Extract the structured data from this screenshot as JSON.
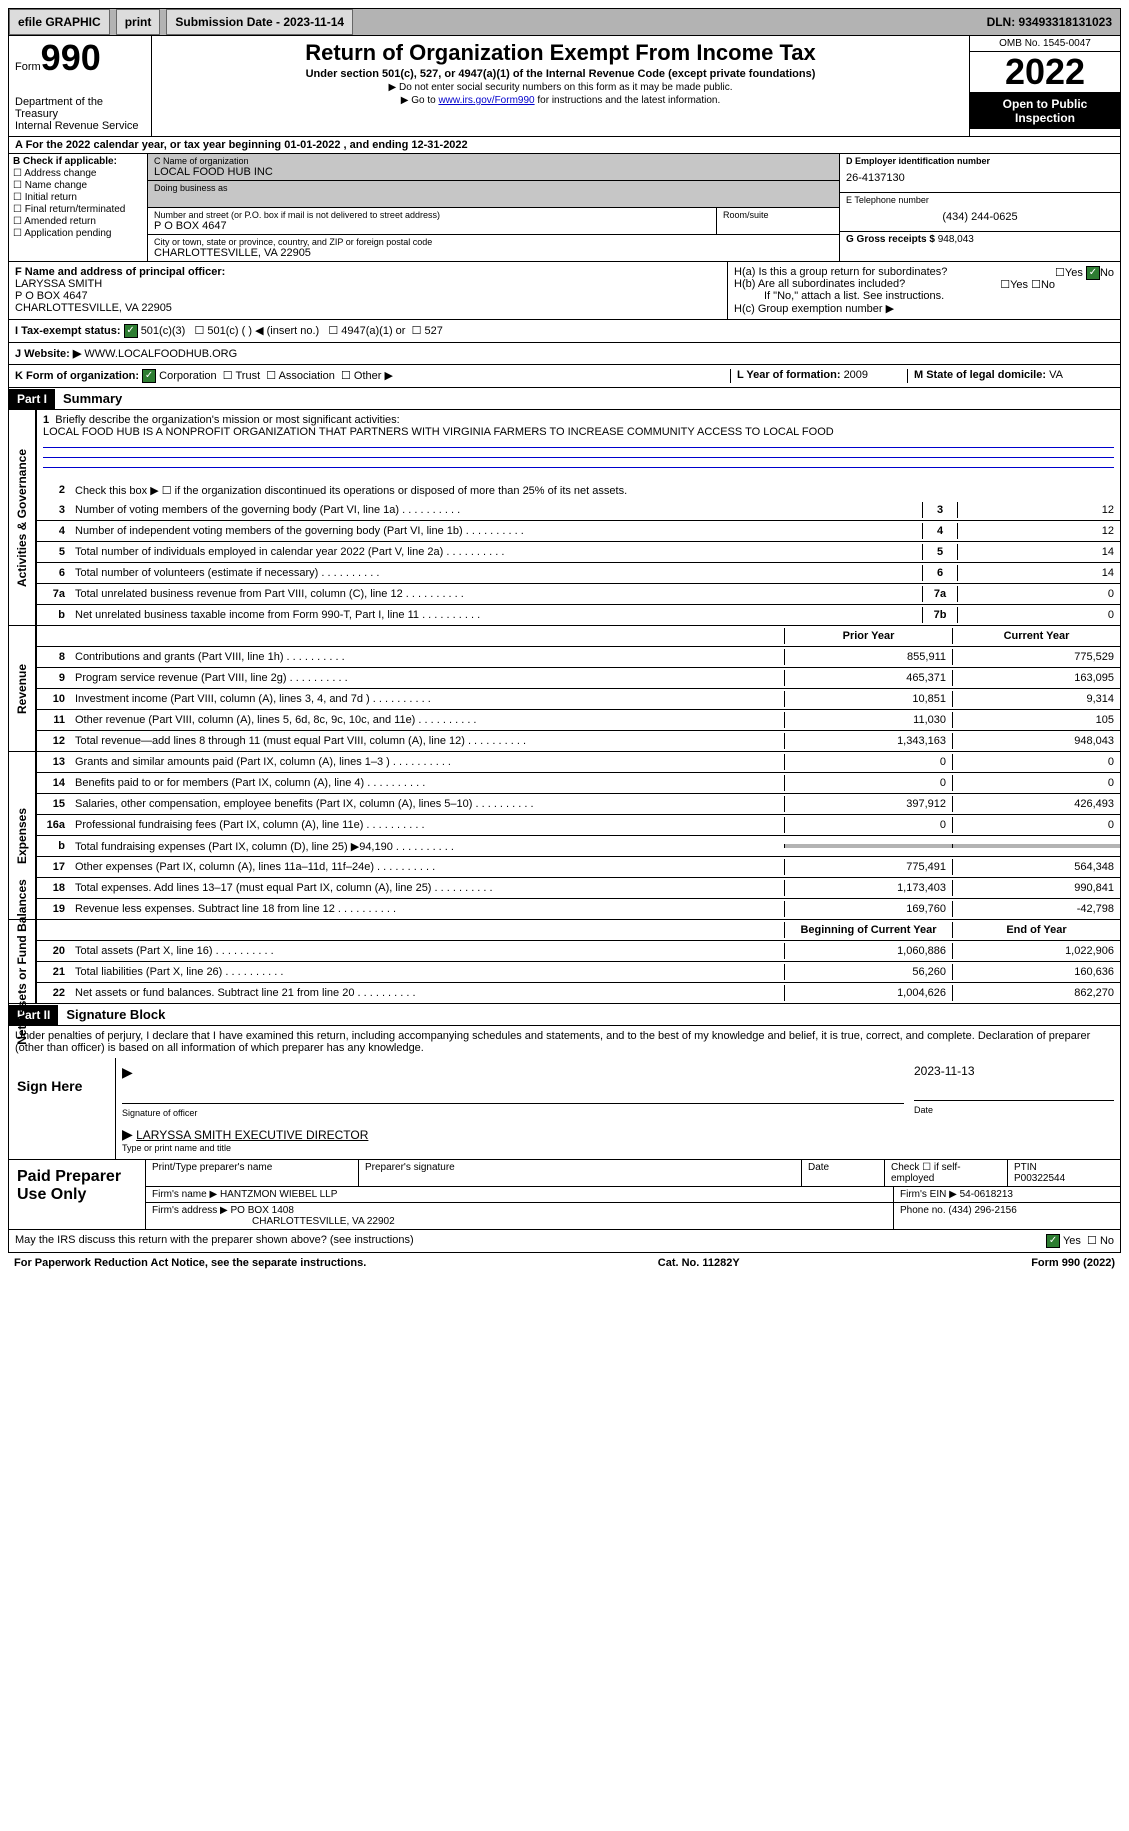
{
  "topbar": {
    "efile": "efile GRAPHIC",
    "print": "print",
    "sub_label": "Submission Date - 2023-11-14",
    "dln": "DLN: 93493318131023"
  },
  "header": {
    "form_prefix": "Form",
    "form_no": "990",
    "title": "Return of Organization Exempt From Income Tax",
    "subtitle": "Under section 501(c), 527, or 4947(a)(1) of the Internal Revenue Code (except private foundations)",
    "note1": "▶ Do not enter social security numbers on this form as it may be made public.",
    "note2_pre": "▶ Go to ",
    "note2_link": "www.irs.gov/Form990",
    "note2_post": " for instructions and the latest information.",
    "dept": "Department of the Treasury",
    "irs": "Internal Revenue Service",
    "omb": "OMB No. 1545-0047",
    "year": "2022",
    "open": "Open to Public Inspection"
  },
  "period": {
    "label_a": "A For the 2022 calendar year, or tax year beginning ",
    "begin": "01-01-2022",
    "mid": " , and ending ",
    "end": "12-31-2022"
  },
  "boxB": {
    "title": "B Check if applicable:",
    "items": [
      "Address change",
      "Name change",
      "Initial return",
      "Final return/terminated",
      "Amended return",
      "Application pending"
    ]
  },
  "boxC": {
    "name_label": "C Name of organization",
    "name": "LOCAL FOOD HUB INC",
    "dba_label": "Doing business as",
    "addr_label": "Number and street (or P.O. box if mail is not delivered to street address)",
    "room_label": "Room/suite",
    "addr": "P O BOX 4647",
    "city_label": "City or town, state or province, country, and ZIP or foreign postal code",
    "city": "CHARLOTTESVILLE, VA  22905"
  },
  "boxD": {
    "label": "D Employer identification number",
    "value": "26-4137130"
  },
  "boxE": {
    "label": "E Telephone number",
    "value": "(434) 244-0625"
  },
  "boxG": {
    "label": "G Gross receipts $ ",
    "value": "948,043"
  },
  "boxF": {
    "label": "F Name and address of principal officer:",
    "name": "LARYSSA SMITH",
    "addr1": "P O BOX 4647",
    "addr2": "CHARLOTTESVILLE, VA  22905"
  },
  "boxH": {
    "ha": "H(a)  Is this a group return for subordinates?",
    "hb": "H(b)  Are all subordinates included?",
    "hb_note": "If \"No,\" attach a list. See instructions.",
    "hc": "H(c)  Group exemption number ▶",
    "yes": "Yes",
    "no": "No"
  },
  "boxI": {
    "label": "I  Tax-exempt status:",
    "opt1": "501(c)(3)",
    "opt2": "501(c) (  ) ◀ (insert no.)",
    "opt3": "4947(a)(1) or",
    "opt4": "527"
  },
  "boxJ": {
    "label": "J  Website: ▶ ",
    "value": "WWW.LOCALFOODHUB.ORG"
  },
  "boxK": {
    "label": "K Form of organization:",
    "opts": [
      "Corporation",
      "Trust",
      "Association",
      "Other ▶"
    ]
  },
  "boxL": {
    "label": "L Year of formation: ",
    "value": "2009"
  },
  "boxM": {
    "label": "M State of legal domicile: ",
    "value": "VA"
  },
  "part1": {
    "header": "Part I",
    "title": "Summary"
  },
  "summary": {
    "line1_label": "Briefly describe the organization's mission or most significant activities:",
    "line1_text": "LOCAL FOOD HUB IS A NONPROFIT ORGANIZATION THAT PARTNERS WITH VIRGINIA FARMERS TO INCREASE COMMUNITY ACCESS TO LOCAL FOOD",
    "line2": "Check this box ▶ ☐ if the organization discontinued its operations or disposed of more than 25% of its net assets.",
    "lines_ag": [
      {
        "n": "3",
        "t": "Number of voting members of the governing body (Part VI, line 1a)",
        "box": "3",
        "v": "12"
      },
      {
        "n": "4",
        "t": "Number of independent voting members of the governing body (Part VI, line 1b)",
        "box": "4",
        "v": "12"
      },
      {
        "n": "5",
        "t": "Total number of individuals employed in calendar year 2022 (Part V, line 2a)",
        "box": "5",
        "v": "14"
      },
      {
        "n": "6",
        "t": "Total number of volunteers (estimate if necessary)",
        "box": "6",
        "v": "14"
      },
      {
        "n": "7a",
        "t": "Total unrelated business revenue from Part VIII, column (C), line 12",
        "box": "7a",
        "v": "0"
      },
      {
        "n": "b",
        "t": "Net unrelated business taxable income from Form 990-T, Part I, line 11",
        "box": "7b",
        "v": "0"
      }
    ],
    "prior_header": "Prior Year",
    "curr_header": "Current Year",
    "revenue": [
      {
        "n": "8",
        "t": "Contributions and grants (Part VIII, line 1h)",
        "p": "855,911",
        "c": "775,529"
      },
      {
        "n": "9",
        "t": "Program service revenue (Part VIII, line 2g)",
        "p": "465,371",
        "c": "163,095"
      },
      {
        "n": "10",
        "t": "Investment income (Part VIII, column (A), lines 3, 4, and 7d )",
        "p": "10,851",
        "c": "9,314"
      },
      {
        "n": "11",
        "t": "Other revenue (Part VIII, column (A), lines 5, 6d, 8c, 9c, 10c, and 11e)",
        "p": "11,030",
        "c": "105"
      },
      {
        "n": "12",
        "t": "Total revenue—add lines 8 through 11 (must equal Part VIII, column (A), line 12)",
        "p": "1,343,163",
        "c": "948,043"
      }
    ],
    "expenses": [
      {
        "n": "13",
        "t": "Grants and similar amounts paid (Part IX, column (A), lines 1–3 )",
        "p": "0",
        "c": "0"
      },
      {
        "n": "14",
        "t": "Benefits paid to or for members (Part IX, column (A), line 4)",
        "p": "0",
        "c": "0"
      },
      {
        "n": "15",
        "t": "Salaries, other compensation, employee benefits (Part IX, column (A), lines 5–10)",
        "p": "397,912",
        "c": "426,493"
      },
      {
        "n": "16a",
        "t": "Professional fundraising fees (Part IX, column (A), line 11e)",
        "p": "0",
        "c": "0"
      },
      {
        "n": "b",
        "t": "Total fundraising expenses (Part IX, column (D), line 25) ▶94,190",
        "p": "shaded",
        "c": "shaded"
      },
      {
        "n": "17",
        "t": "Other expenses (Part IX, column (A), lines 11a–11d, 11f–24e)",
        "p": "775,491",
        "c": "564,348"
      },
      {
        "n": "18",
        "t": "Total expenses. Add lines 13–17 (must equal Part IX, column (A), line 25)",
        "p": "1,173,403",
        "c": "990,841"
      },
      {
        "n": "19",
        "t": "Revenue less expenses. Subtract line 18 from line 12",
        "p": "169,760",
        "c": "-42,798"
      }
    ],
    "na_header_prior": "Beginning of Current Year",
    "na_header_curr": "End of Year",
    "netassets": [
      {
        "n": "20",
        "t": "Total assets (Part X, line 16)",
        "p": "1,060,886",
        "c": "1,022,906"
      },
      {
        "n": "21",
        "t": "Total liabilities (Part X, line 26)",
        "p": "56,260",
        "c": "160,636"
      },
      {
        "n": "22",
        "t": "Net assets or fund balances. Subtract line 21 from line 20",
        "p": "1,004,626",
        "c": "862,270"
      }
    ],
    "side_ag": "Activities & Governance",
    "side_rev": "Revenue",
    "side_exp": "Expenses",
    "side_na": "Net Assets or Fund Balances"
  },
  "part2": {
    "header": "Part II",
    "title": "Signature Block"
  },
  "penalties": "Under penalties of perjury, I declare that I have examined this return, including accompanying schedules and statements, and to the best of my knowledge and belief, it is true, correct, and complete. Declaration of preparer (other than officer) is based on all information of which preparer has any knowledge.",
  "sign": {
    "here": "Sign Here",
    "sig_label": "Signature of officer",
    "date": "2023-11-13",
    "date_label": "Date",
    "name": "LARYSSA SMITH  EXECUTIVE DIRECTOR",
    "name_label": "Type or print name and title"
  },
  "prep": {
    "title": "Paid Preparer Use Only",
    "h1": "Print/Type preparer's name",
    "h2": "Preparer's signature",
    "h3": "Date",
    "h4_check": "Check ☐ if self-employed",
    "h5": "PTIN",
    "ptin": "P00322544",
    "firm_label": "Firm's name    ▶ ",
    "firm": "HANTZMON WIEBEL LLP",
    "ein_label": "Firm's EIN ▶ ",
    "ein": "54-0618213",
    "addr_label": "Firm's address ▶ ",
    "addr1": "PO BOX 1408",
    "addr2": "CHARLOTTESVILLE, VA  22902",
    "phone_label": "Phone no. ",
    "phone": "(434) 296-2156"
  },
  "footer": {
    "discuss": "May the IRS discuss this return with the preparer shown above? (see instructions)",
    "yes": "Yes",
    "no": "No",
    "paperwork": "For Paperwork Reduction Act Notice, see the separate instructions.",
    "cat": "Cat. No. 11282Y",
    "formref": "Form 990 (2022)"
  }
}
